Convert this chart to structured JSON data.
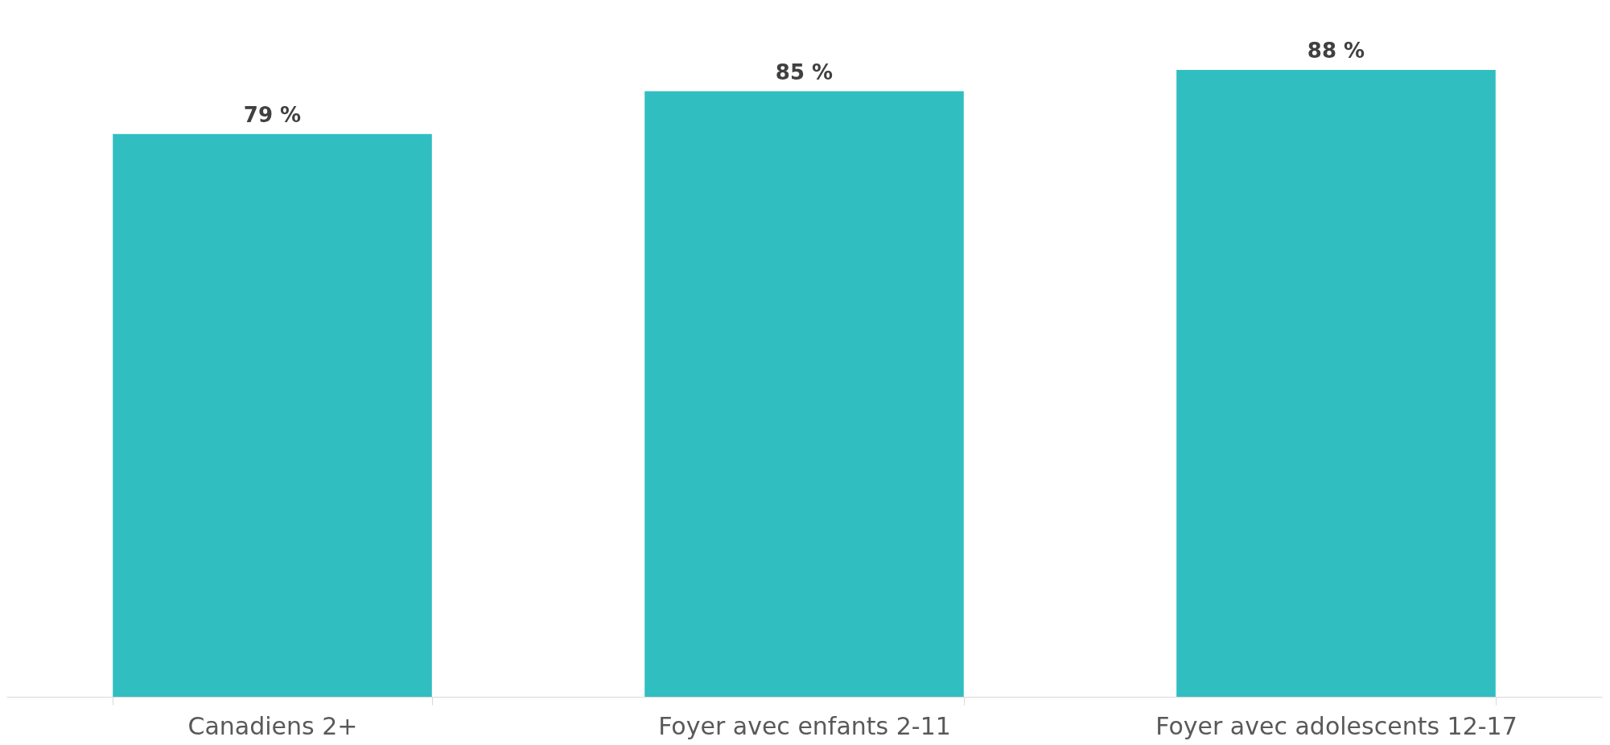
{
  "chart_data": {
    "type": "bar",
    "categories": [
      "Canadiens 2+",
      "Foyer avec enfants 2-11",
      "Foyer avec adolescents 12-17"
    ],
    "values": [
      79,
      85,
      88
    ],
    "value_labels": [
      "79 %",
      "85 %",
      "88 %"
    ],
    "color": "#31bec1"
  }
}
